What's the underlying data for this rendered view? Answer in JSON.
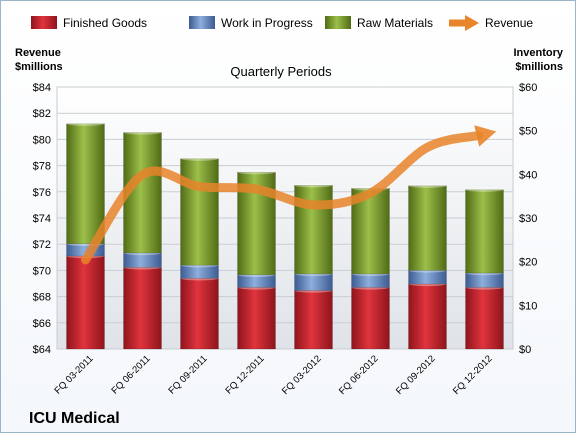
{
  "chart_data": {
    "type": "bar",
    "stacked": true,
    "title": "Quarterly Periods",
    "brand": "ICU Medical",
    "left_axis": {
      "label_line1": "Revenue",
      "label_line2": "$millions",
      "min": 64,
      "max": 84,
      "step": 2,
      "prefix": "$"
    },
    "right_axis": {
      "label_line1": "Inventory",
      "label_line2": "$millions",
      "min": 0,
      "max": 60,
      "step": 10,
      "prefix": "$"
    },
    "categories": [
      "FQ 03-2011",
      "FQ 06-2011",
      "FQ 09-2011",
      "FQ 12-2011",
      "FQ 03-2012",
      "FQ 06-2012",
      "FQ 09-2012",
      "FQ 12-2012"
    ],
    "series": [
      {
        "name": "Finished Goods",
        "axis": "right",
        "color": "#cc1f2b",
        "values": [
          21.3,
          18.7,
          16.2,
          14.1,
          13.4,
          14.1,
          14.9,
          14.1
        ]
      },
      {
        "name": "Work in Progress",
        "axis": "right",
        "color": "#5b7fbe",
        "values": [
          2.8,
          3.3,
          3.0,
          2.9,
          3.8,
          3.1,
          3.1,
          3.3
        ]
      },
      {
        "name": "Raw Materials",
        "axis": "right",
        "color": "#7a9b2a",
        "values": [
          27.5,
          27.6,
          24.4,
          23.5,
          20.3,
          19.6,
          19.4,
          19.1
        ]
      },
      {
        "name": "Revenue",
        "axis": "left",
        "type": "line",
        "color": "#e8842a",
        "values": [
          70.8,
          77.3,
          76.4,
          76.2,
          75.0,
          75.9,
          79.4,
          80.4
        ]
      }
    ],
    "grid": true,
    "legend_position": "top"
  }
}
